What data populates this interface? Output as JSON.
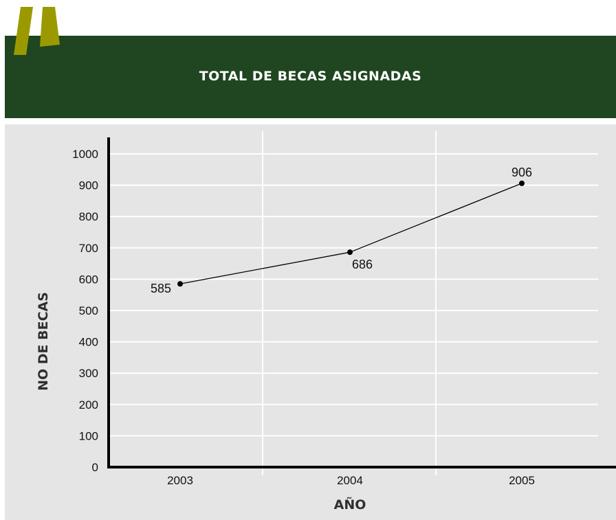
{
  "header": {
    "title": "TOTAL DE BECAS ASIGNADAS",
    "accent_color": "#9a9a00",
    "band_color": "#1f4620"
  },
  "chart_data": {
    "type": "line",
    "title": "TOTAL DE BECAS ASIGNADAS",
    "xlabel": "AÑO",
    "ylabel": "NO DE BECAS",
    "categories": [
      "2003",
      "2004",
      "2005"
    ],
    "series": [
      {
        "values": [
          585,
          686,
          906
        ]
      }
    ],
    "data_labels": [
      "585",
      "686",
      "906"
    ],
    "ylim": [
      0,
      1000
    ],
    "yticks": [
      0,
      100,
      200,
      300,
      400,
      500,
      600,
      700,
      800,
      900,
      1000
    ],
    "grid": true,
    "background": "#e5e5e5",
    "line_color": "#000000"
  }
}
